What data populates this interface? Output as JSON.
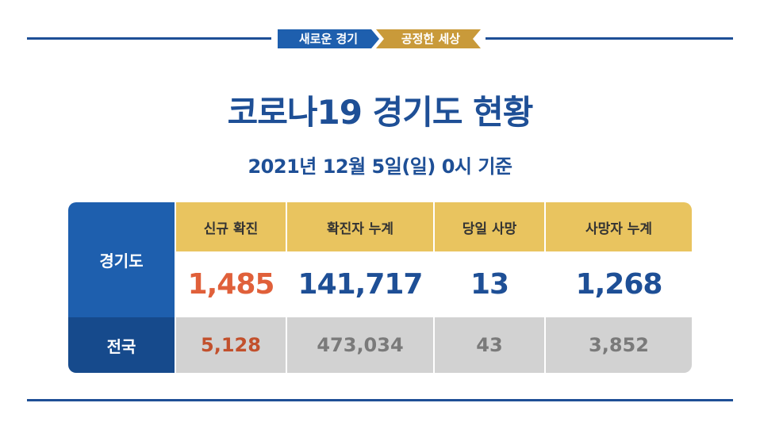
{
  "slogan": {
    "left": "새로운 경기",
    "right": "공정한 세상"
  },
  "title": "코로나19 경기도 현황",
  "subtitle": "2021년 12월 5일(일) 0시 기준",
  "table": {
    "headers": [
      "신규 확진",
      "확진자 누계",
      "당일 사망",
      "사망자 누계"
    ],
    "rows": [
      {
        "label": "경기도",
        "values": [
          "1,485",
          "141,717",
          "13",
          "1,268"
        ]
      },
      {
        "label": "전국",
        "values": [
          "5,128",
          "473,034",
          "43",
          "3,852"
        ]
      }
    ]
  },
  "colors": {
    "brand_blue": "#1e4f96",
    "header_gold": "#e9c45f",
    "accent_orange": "#e0603a",
    "national_gray": "#d2d2d2"
  }
}
